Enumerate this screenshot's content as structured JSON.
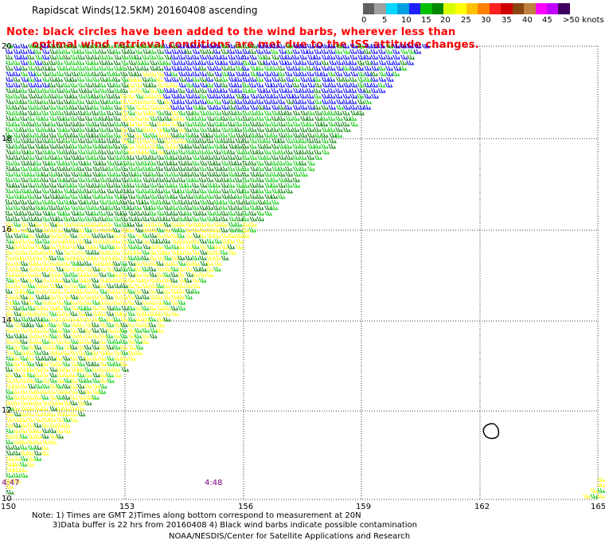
{
  "header": {
    "title": "Rapidscat Winds(12.5KM) 20160408 ascending",
    "note_line1": "Note: black circles have been added to the wind barbs, wherever less than",
    "note_line2": "optimal wind retrieval conditions are met due to the ISS attitude changes."
  },
  "colorbar": {
    "labels": [
      "0",
      "5",
      "10",
      "15",
      "20",
      "25",
      "30",
      "35",
      "40",
      "45",
      ">50 knots"
    ],
    "colors": [
      "#606060",
      "#a0a0a0",
      "#00d8ff",
      "#00a0e0",
      "#2020ff",
      "#00c000",
      "#008800",
      "#d8ff00",
      "#ffff00",
      "#ffc000",
      "#ff8000",
      "#ff2020",
      "#d00000",
      "#8b4513",
      "#c08040",
      "#ff00ff",
      "#c000ff",
      "#400060"
    ]
  },
  "map": {
    "lon_labels": [
      "150",
      "153",
      "156",
      "159",
      "162",
      "165"
    ],
    "lat_labels": [
      "20",
      "18",
      "16",
      "14",
      "12",
      "10"
    ],
    "time_labels": [
      "4:47",
      "4:48"
    ],
    "time_label_color": "#800080",
    "barb_colors": {
      "blue": "#0000ff",
      "green_light": "#00cc00",
      "green_dark": "#008000",
      "yellow": "#ffff00"
    }
  },
  "footer": {
    "line1": "Note: 1) Times are GMT 2)Times along bottom correspond to measurement at 20N",
    "line2": "3)Data buffer is 22 hrs from 20160408 4) Black wind barbs indicate possible contamination",
    "line3": "NOAA/NESDIS/Center for Satellite Applications and Research"
  }
}
